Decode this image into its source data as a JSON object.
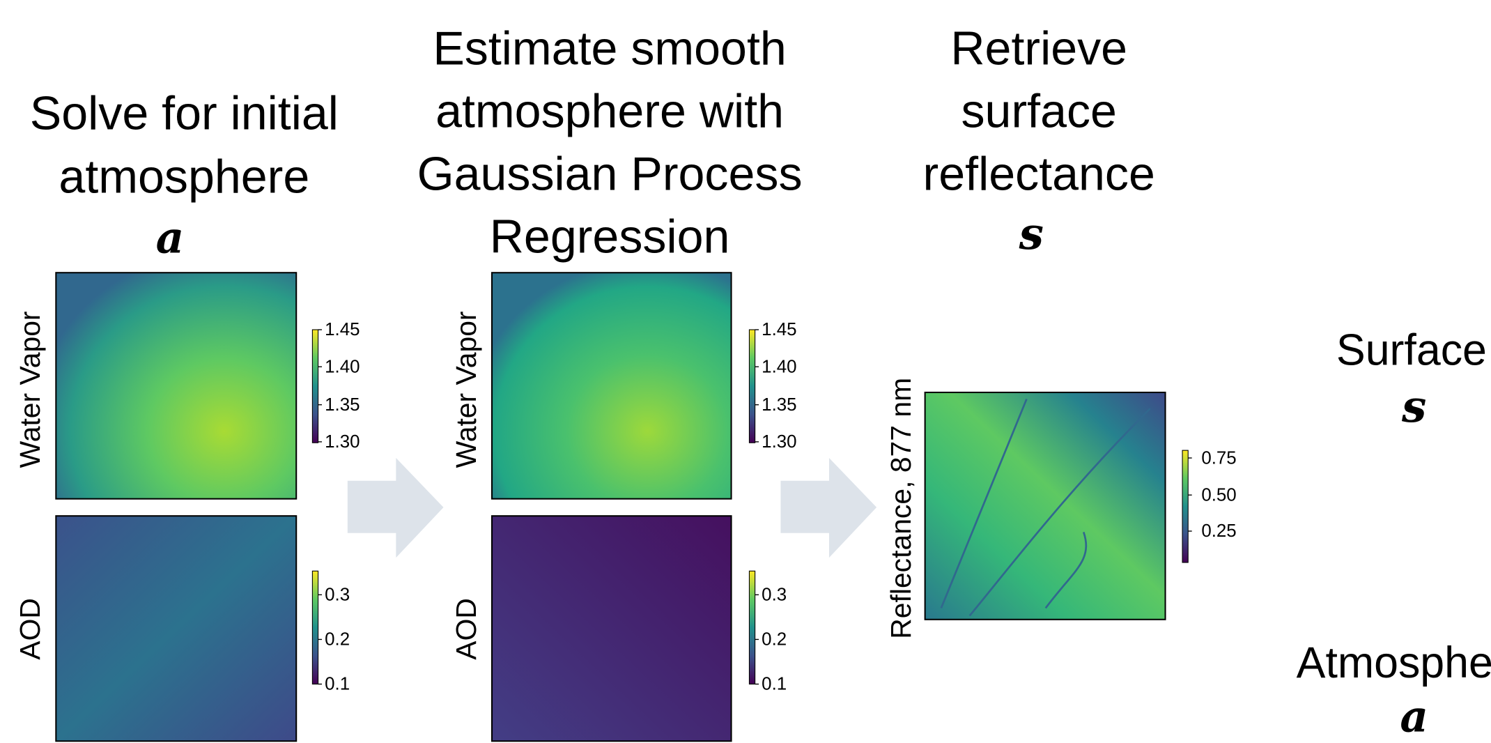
{
  "steps": [
    {
      "title_lines": [
        "Solve for initial",
        "atmosphere"
      ],
      "symbol": "a"
    },
    {
      "title_lines": [
        "Estimate smooth",
        "atmosphere with",
        "Gaussian Process",
        "Regression"
      ]
    },
    {
      "title_lines": [
        "Retrieve",
        "surface",
        "reflectance"
      ],
      "symbol": "s"
    }
  ],
  "panels": {
    "initial_water_vapor": {
      "ylabel": "Water Vapor",
      "ticks": [
        "1.45",
        "1.40",
        "1.35",
        "1.30"
      ]
    },
    "initial_aod": {
      "ylabel": "AOD",
      "ticks": [
        "0.3",
        "0.2",
        "0.1"
      ]
    },
    "smooth_water_vapor": {
      "ylabel": "Water Vapor",
      "ticks": [
        "1.45",
        "1.40",
        "1.35",
        "1.30"
      ]
    },
    "smooth_aod": {
      "ylabel": "AOD",
      "ticks": [
        "0.3",
        "0.2",
        "0.1"
      ]
    },
    "reflectance": {
      "ylabel": "Reflectance, 877 nm",
      "ticks": [
        "0.75",
        "0.50",
        "0.25"
      ]
    }
  },
  "side_labels": [
    {
      "label": "Surface",
      "symbol": "s"
    },
    {
      "label": "Atmosphe",
      "symbol": "a"
    }
  ]
}
